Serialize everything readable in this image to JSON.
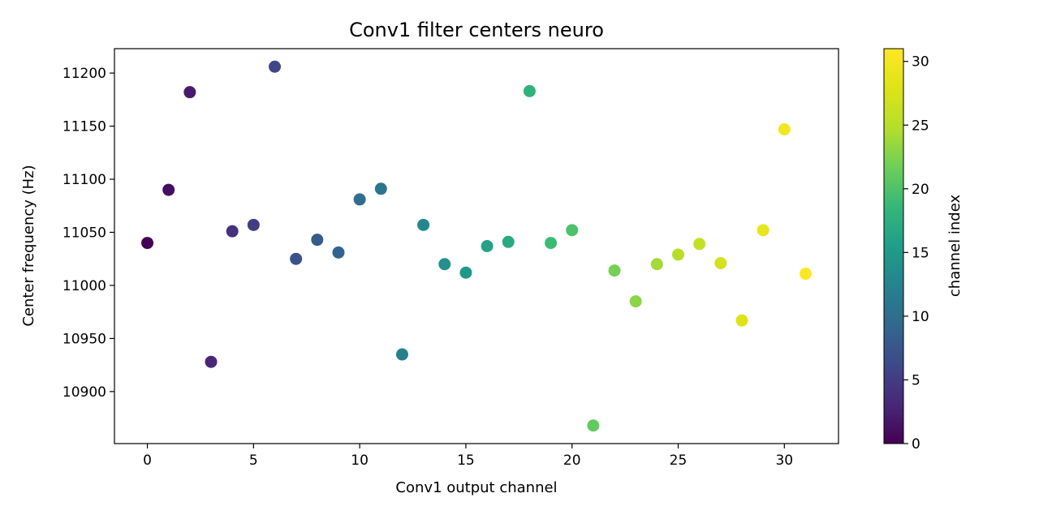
{
  "chart_data": {
    "type": "scatter",
    "title": "Conv1 filter centers neuro",
    "xlabel": "Conv1 output channel",
    "ylabel": "Center frequency (Hz)",
    "xlim": [
      -1.55,
      32.55
    ],
    "ylim": [
      10851,
      11223
    ],
    "x_ticks": [
      0,
      5,
      10,
      15,
      20,
      25,
      30
    ],
    "y_ticks": [
      10900,
      10950,
      11000,
      11050,
      11100,
      11150,
      11200
    ],
    "grid": false,
    "colormap": "viridis",
    "colorbar": {
      "label": "channel index",
      "range": [
        0,
        31
      ],
      "ticks": [
        0,
        5,
        10,
        15,
        20,
        25,
        30
      ]
    },
    "x": [
      0,
      1,
      2,
      3,
      4,
      5,
      6,
      7,
      8,
      9,
      10,
      11,
      12,
      13,
      14,
      15,
      16,
      17,
      18,
      19,
      20,
      21,
      22,
      23,
      24,
      25,
      26,
      27,
      28,
      29,
      30,
      31
    ],
    "y": [
      11040,
      11090,
      11182,
      10928,
      11051,
      11057,
      11206,
      11025,
      11043,
      11031,
      11081,
      11091,
      10935,
      11057,
      11020,
      11012,
      11037,
      11041,
      11183,
      11040,
      11052,
      10868,
      11014,
      10985,
      11020,
      11029,
      11039,
      11021,
      10967,
      11052,
      11147,
      11011
    ]
  }
}
